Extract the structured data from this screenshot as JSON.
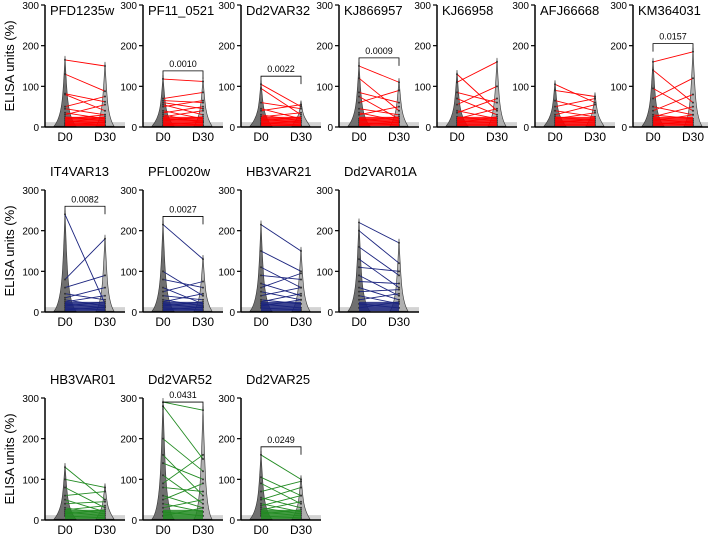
{
  "chart_data": {
    "type": "line",
    "ylabel": "ELISA units (%)",
    "ylim": [
      0,
      300
    ],
    "yticks": [
      0,
      100,
      200,
      300
    ],
    "categories": [
      "D0",
      "D30"
    ],
    "panels": [
      {
        "title": "PFD1235w",
        "color": "#ff0000",
        "row": 0,
        "col": 0,
        "pvalue": null,
        "pairs": [
          [
            165,
            150
          ],
          [
            130,
            88
          ],
          [
            82,
            62
          ],
          [
            80,
            40
          ],
          [
            50,
            75
          ],
          [
            45,
            30
          ],
          [
            35,
            20
          ],
          [
            30,
            55
          ],
          [
            25,
            15
          ],
          [
            20,
            30
          ],
          [
            15,
            10
          ],
          [
            10,
            25
          ],
          [
            8,
            5
          ],
          [
            5,
            12
          ],
          [
            3,
            3
          ]
        ]
      },
      {
        "title": "PF11_0521",
        "color": "#ff0000",
        "row": 0,
        "col": 1,
        "pvalue": "0.0010",
        "pairs": [
          [
            118,
            112
          ],
          [
            70,
            85
          ],
          [
            65,
            60
          ],
          [
            60,
            45
          ],
          [
            55,
            30
          ],
          [
            50,
            65
          ],
          [
            40,
            20
          ],
          [
            35,
            50
          ],
          [
            30,
            10
          ],
          [
            25,
            40
          ],
          [
            20,
            15
          ],
          [
            15,
            25
          ],
          [
            10,
            5
          ],
          [
            5,
            12
          ],
          [
            3,
            3
          ]
        ]
      },
      {
        "title": "Dd2VAR32",
        "color": "#ff0000",
        "row": 0,
        "col": 2,
        "pvalue": "0.0022",
        "pairs": [
          [
            105,
            50
          ],
          [
            95,
            30
          ],
          [
            60,
            45
          ],
          [
            45,
            20
          ],
          [
            40,
            55
          ],
          [
            30,
            15
          ],
          [
            25,
            35
          ],
          [
            20,
            10
          ],
          [
            15,
            25
          ],
          [
            10,
            5
          ],
          [
            8,
            15
          ],
          [
            5,
            3
          ]
        ]
      },
      {
        "title": "KJ866957",
        "color": "#ff0000",
        "row": 0,
        "col": 3,
        "pvalue": "0.0009",
        "pairs": [
          [
            150,
            110
          ],
          [
            120,
            40
          ],
          [
            85,
            60
          ],
          [
            75,
            20
          ],
          [
            60,
            90
          ],
          [
            45,
            30
          ],
          [
            35,
            15
          ],
          [
            30,
            50
          ],
          [
            20,
            10
          ],
          [
            15,
            25
          ],
          [
            10,
            5
          ],
          [
            5,
            12
          ]
        ]
      },
      {
        "title": "KJ66958",
        "color": "#ff0000",
        "row": 0,
        "col": 4,
        "pvalue": null,
        "pairs": [
          [
            130,
            40
          ],
          [
            110,
            160
          ],
          [
            85,
            60
          ],
          [
            70,
            30
          ],
          [
            55,
            100
          ],
          [
            40,
            20
          ],
          [
            35,
            70
          ],
          [
            25,
            15
          ],
          [
            20,
            45
          ],
          [
            15,
            10
          ],
          [
            10,
            25
          ],
          [
            5,
            5
          ]
        ]
      },
      {
        "title": "AFJ66668",
        "color": "#ff0000",
        "row": 0,
        "col": 5,
        "pvalue": null,
        "pairs": [
          [
            105,
            60
          ],
          [
            90,
            75
          ],
          [
            65,
            40
          ],
          [
            50,
            70
          ],
          [
            40,
            25
          ],
          [
            30,
            55
          ],
          [
            25,
            15
          ],
          [
            20,
            35
          ],
          [
            15,
            10
          ],
          [
            10,
            20
          ],
          [
            5,
            5
          ]
        ]
      },
      {
        "title": "KM364031",
        "color": "#ff0000",
        "row": 0,
        "col": 6,
        "pvalue": "0.0157",
        "pairs": [
          [
            160,
            185
          ],
          [
            140,
            60
          ],
          [
            95,
            40
          ],
          [
            70,
            120
          ],
          [
            50,
            30
          ],
          [
            40,
            80
          ],
          [
            30,
            20
          ],
          [
            25,
            50
          ],
          [
            20,
            10
          ],
          [
            15,
            30
          ],
          [
            10,
            5
          ],
          [
            5,
            15
          ]
        ]
      },
      {
        "title": "IT4VAR13",
        "color": "#1a237e",
        "row": 1,
        "col": 0,
        "pvalue": "0.0082",
        "pairs": [
          [
            240,
            20
          ],
          [
            80,
            180
          ],
          [
            60,
            90
          ],
          [
            45,
            30
          ],
          [
            35,
            60
          ],
          [
            30,
            15
          ],
          [
            25,
            40
          ],
          [
            20,
            10
          ],
          [
            15,
            25
          ],
          [
            10,
            5
          ],
          [
            5,
            12
          ]
        ]
      },
      {
        "title": "PFL0020w",
        "color": "#1a237e",
        "row": 1,
        "col": 1,
        "pvalue": "0.0027",
        "pairs": [
          [
            215,
            130
          ],
          [
            100,
            40
          ],
          [
            80,
            60
          ],
          [
            60,
            20
          ],
          [
            50,
            75
          ],
          [
            40,
            30
          ],
          [
            30,
            15
          ],
          [
            25,
            45
          ],
          [
            20,
            10
          ],
          [
            15,
            25
          ],
          [
            10,
            5
          ],
          [
            5,
            12
          ]
        ]
      },
      {
        "title": "HB3VAR21",
        "color": "#1a237e",
        "row": 1,
        "col": 2,
        "pvalue": null,
        "pairs": [
          [
            215,
            150
          ],
          [
            150,
            100
          ],
          [
            110,
            60
          ],
          [
            90,
            80
          ],
          [
            70,
            40
          ],
          [
            60,
            95
          ],
          [
            50,
            30
          ],
          [
            40,
            60
          ],
          [
            30,
            20
          ],
          [
            25,
            45
          ],
          [
            20,
            10
          ],
          [
            15,
            30
          ],
          [
            10,
            5
          ]
        ]
      },
      {
        "title": "Dd2VAR01A",
        "color": "#1a237e",
        "row": 1,
        "col": 3,
        "pvalue": null,
        "pairs": [
          [
            220,
            170
          ],
          [
            200,
            120
          ],
          [
            160,
            90
          ],
          [
            130,
            60
          ],
          [
            110,
            100
          ],
          [
            90,
            40
          ],
          [
            75,
            70
          ],
          [
            60,
            30
          ],
          [
            50,
            55
          ],
          [
            40,
            20
          ],
          [
            30,
            45
          ],
          [
            20,
            10
          ],
          [
            10,
            25
          ]
        ]
      },
      {
        "title": "HB3VAR01",
        "color": "#228b22",
        "row": 2,
        "col": 0,
        "pvalue": null,
        "pairs": [
          [
            130,
            50
          ],
          [
            100,
            80
          ],
          [
            80,
            30
          ],
          [
            60,
            70
          ],
          [
            50,
            20
          ],
          [
            40,
            45
          ],
          [
            30,
            15
          ],
          [
            25,
            35
          ],
          [
            20,
            10
          ],
          [
            15,
            25
          ],
          [
            10,
            5
          ]
        ]
      },
      {
        "title": "Dd2VAR52",
        "color": "#228b22",
        "row": 2,
        "col": 1,
        "pvalue": "0.0431",
        "pairs": [
          [
            290,
            270
          ],
          [
            280,
            150
          ],
          [
            200,
            120
          ],
          [
            160,
            60
          ],
          [
            140,
            100
          ],
          [
            110,
            40
          ],
          [
            90,
            160
          ],
          [
            80,
            70
          ],
          [
            60,
            30
          ],
          [
            50,
            90
          ],
          [
            40,
            20
          ],
          [
            30,
            50
          ],
          [
            20,
            10
          ],
          [
            10,
            30
          ]
        ]
      },
      {
        "title": "Dd2VAR25",
        "color": "#228b22",
        "row": 2,
        "col": 2,
        "pvalue": "0.0249",
        "pairs": [
          [
            160,
            100
          ],
          [
            105,
            60
          ],
          [
            90,
            40
          ],
          [
            70,
            95
          ],
          [
            55,
            30
          ],
          [
            50,
            80
          ],
          [
            40,
            20
          ],
          [
            35,
            60
          ],
          [
            30,
            15
          ],
          [
            25,
            45
          ],
          [
            20,
            10
          ],
          [
            15,
            25
          ],
          [
            10,
            5
          ]
        ]
      }
    ]
  }
}
